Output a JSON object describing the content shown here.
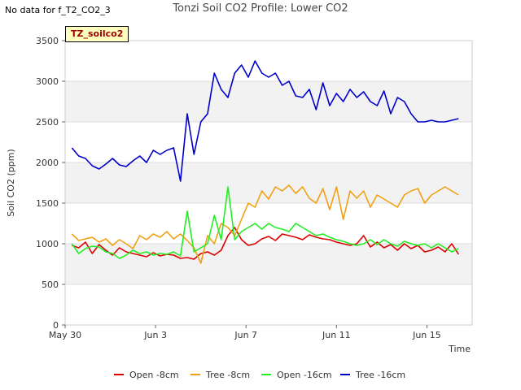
{
  "no_data_note": "No data for f_T2_CO2_3",
  "site_label": "TZ_soilco2",
  "colors": {
    "Open -8cm": "#dd0000",
    "Tree -8cm": "#f0a010",
    "Open -16cm": "#22ee22",
    "Tree -16cm": "#0000cc"
  },
  "chart_data": {
    "type": "line",
    "title": "Tonzi Soil CO2 Profile: Lower CO2",
    "xlabel": "Time",
    "ylabel": "Soil CO2 (ppm)",
    "ylim": [
      0,
      3500
    ],
    "xlim": [
      0,
      18
    ],
    "x_units": "days since May 30",
    "yticks": [
      0,
      500,
      1000,
      1500,
      2000,
      2500,
      3000,
      3500
    ],
    "xticks": [
      {
        "value": 0,
        "label": "May 30"
      },
      {
        "value": 4,
        "label": "Jun 3"
      },
      {
        "value": 8,
        "label": "Jun 7"
      },
      {
        "value": 12,
        "label": "Jun 11"
      },
      {
        "value": 16,
        "label": "Jun 15"
      }
    ],
    "grid": true,
    "legend_position": "bottom",
    "series": [
      {
        "name": "Open -8cm",
        "x": [
          0.3,
          0.6,
          0.9,
          1.2,
          1.5,
          1.8,
          2.1,
          2.4,
          2.7,
          3.0,
          3.3,
          3.6,
          3.9,
          4.2,
          4.5,
          4.8,
          5.1,
          5.4,
          5.7,
          6.0,
          6.3,
          6.6,
          6.9,
          7.2,
          7.5,
          7.8,
          8.1,
          8.4,
          8.7,
          9.0,
          9.3,
          9.6,
          9.9,
          10.2,
          10.5,
          10.8,
          11.1,
          11.4,
          11.7,
          12.0,
          12.3,
          12.6,
          12.9,
          13.2,
          13.5,
          13.8,
          14.1,
          14.4,
          14.7,
          15.0,
          15.3,
          15.6,
          15.9,
          16.2,
          16.5,
          16.8,
          17.1,
          17.4
        ],
        "y": [
          980,
          950,
          1020,
          880,
          990,
          920,
          860,
          950,
          900,
          880,
          860,
          840,
          890,
          850,
          870,
          860,
          820,
          830,
          810,
          880,
          900,
          860,
          920,
          1100,
          1200,
          1050,
          980,
          1000,
          1060,
          1090,
          1040,
          1120,
          1100,
          1080,
          1050,
          1110,
          1080,
          1060,
          1050,
          1020,
          1000,
          980,
          1000,
          1100,
          960,
          1020,
          950,
          990,
          920,
          1000,
          940,
          980,
          900,
          920,
          960,
          900,
          1000,
          870
        ]
      },
      {
        "name": "Tree -8cm",
        "x": [
          0.3,
          0.6,
          0.9,
          1.2,
          1.5,
          1.8,
          2.1,
          2.4,
          2.7,
          3.0,
          3.3,
          3.6,
          3.9,
          4.2,
          4.5,
          4.8,
          5.1,
          5.4,
          5.7,
          6.0,
          6.3,
          6.6,
          6.9,
          7.2,
          7.5,
          7.8,
          8.1,
          8.4,
          8.7,
          9.0,
          9.3,
          9.6,
          9.9,
          10.2,
          10.5,
          10.8,
          11.1,
          11.4,
          11.7,
          12.0,
          12.3,
          12.6,
          12.9,
          13.2,
          13.5,
          13.8,
          14.1,
          14.4,
          14.7,
          15.0,
          15.3,
          15.6,
          15.9,
          16.2,
          16.5,
          16.8,
          17.1,
          17.4
        ],
        "y": [
          1120,
          1040,
          1060,
          1080,
          1020,
          1060,
          980,
          1050,
          1000,
          940,
          1100,
          1050,
          1120,
          1080,
          1150,
          1060,
          1120,
          1040,
          950,
          760,
          1100,
          1000,
          1250,
          1200,
          1100,
          1300,
          1500,
          1450,
          1650,
          1550,
          1700,
          1650,
          1720,
          1620,
          1700,
          1560,
          1500,
          1680,
          1420,
          1700,
          1300,
          1650,
          1560,
          1650,
          1450,
          1600,
          1550,
          1500,
          1450,
          1600,
          1650,
          1680,
          1500,
          1600,
          1650,
          1700,
          1650,
          1600
        ]
      },
      {
        "name": "Open -16cm",
        "x": [
          0.3,
          0.6,
          0.9,
          1.2,
          1.5,
          1.8,
          2.1,
          2.4,
          2.7,
          3.0,
          3.3,
          3.6,
          3.9,
          4.2,
          4.5,
          4.8,
          5.1,
          5.4,
          5.7,
          6.0,
          6.3,
          6.6,
          6.9,
          7.2,
          7.5,
          7.8,
          8.1,
          8.4,
          8.7,
          9.0,
          9.3,
          9.6,
          9.9,
          10.2,
          10.5,
          10.8,
          11.1,
          11.4,
          11.7,
          12.0,
          12.3,
          12.6,
          12.9,
          13.2,
          13.5,
          13.8,
          14.1,
          14.4,
          14.7,
          15.0,
          15.3,
          15.6,
          15.9,
          16.2,
          16.5,
          16.8,
          17.1,
          17.4
        ],
        "y": [
          1000,
          880,
          940,
          970,
          960,
          900,
          880,
          820,
          860,
          920,
          880,
          900,
          860,
          880,
          870,
          900,
          850,
          1400,
          900,
          950,
          1000,
          1350,
          1050,
          1700,
          1050,
          1150,
          1200,
          1250,
          1180,
          1250,
          1200,
          1180,
          1150,
          1250,
          1200,
          1150,
          1100,
          1120,
          1080,
          1050,
          1030,
          1000,
          980,
          1000,
          1050,
          990,
          1050,
          1000,
          970,
          1030,
          1000,
          980,
          1000,
          950,
          1000,
          950,
          900,
          940
        ]
      },
      {
        "name": "Tree -16cm",
        "x": [
          0.3,
          0.6,
          0.9,
          1.2,
          1.5,
          1.8,
          2.1,
          2.4,
          2.7,
          3.0,
          3.3,
          3.6,
          3.9,
          4.2,
          4.5,
          4.8,
          5.1,
          5.4,
          5.7,
          6.0,
          6.3,
          6.6,
          6.9,
          7.2,
          7.5,
          7.8,
          8.1,
          8.4,
          8.7,
          9.0,
          9.3,
          9.6,
          9.9,
          10.2,
          10.5,
          10.8,
          11.1,
          11.4,
          11.7,
          12.0,
          12.3,
          12.6,
          12.9,
          13.2,
          13.5,
          13.8,
          14.1,
          14.4,
          14.7,
          15.0,
          15.3,
          15.6,
          15.9,
          16.2,
          16.5,
          16.8,
          17.1,
          17.4
        ],
        "y": [
          2180,
          2080,
          2050,
          1960,
          1920,
          1980,
          2050,
          1970,
          1950,
          2020,
          2080,
          2000,
          2150,
          2100,
          2150,
          2180,
          1770,
          2600,
          2100,
          2500,
          2600,
          3100,
          2900,
          2800,
          3100,
          3200,
          3050,
          3250,
          3100,
          3050,
          3100,
          2950,
          3000,
          2820,
          2800,
          2900,
          2650,
          2980,
          2700,
          2850,
          2750,
          2900,
          2800,
          2870,
          2750,
          2700,
          2880,
          2600,
          2800,
          2750,
          2600,
          2500,
          2500,
          2520,
          2500,
          2500,
          2520,
          2540
        ]
      }
    ]
  }
}
